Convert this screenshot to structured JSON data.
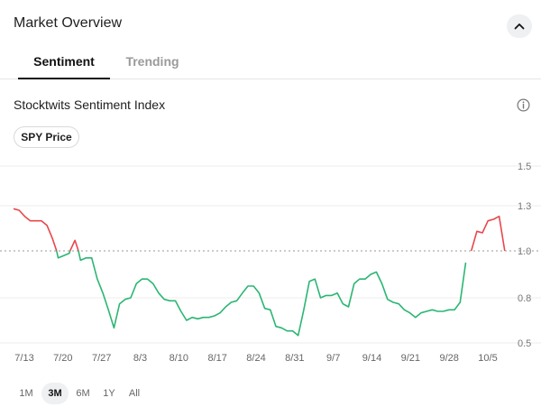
{
  "header": {
    "title": "Market Overview",
    "collapse_icon": "chevron-up-icon"
  },
  "tabs": [
    {
      "label": "Sentiment",
      "active": true
    },
    {
      "label": "Trending",
      "active": false
    }
  ],
  "index_title": "Stocktwits Sentiment Index",
  "info_icon": "info-icon",
  "chip_label": "SPY Price",
  "range_buttons": [
    {
      "label": "1M",
      "active": false
    },
    {
      "label": "3M",
      "active": true
    },
    {
      "label": "6M",
      "active": false
    },
    {
      "label": "1Y",
      "active": false
    },
    {
      "label": "All",
      "active": false
    }
  ],
  "colors": {
    "positive": "#2bb673",
    "negative": "#e8474c",
    "baseline": "#999999",
    "grid": "#eeeeee"
  },
  "chart_data": {
    "type": "line",
    "xlabel": "",
    "ylabel": "",
    "x_tick_labels": [
      "7/13",
      "7/20",
      "7/27",
      "8/3",
      "8/10",
      "8/17",
      "8/24",
      "8/31",
      "9/7",
      "9/14",
      "9/21",
      "9/28",
      "10/5"
    ],
    "y_ticks": [
      "1.5",
      "1.3",
      "1.0",
      "0.8",
      "0.5"
    ],
    "baseline": 1.0,
    "grid": true,
    "series": [
      {
        "values": [
          1.28,
          1.27,
          1.23,
          1.2,
          1.2,
          1.2,
          1.17,
          1.08,
          0.97,
          0.98,
          0.99,
          1.07,
          0.96,
          0.97,
          0.97,
          0.88,
          0.82,
          0.72,
          0.6,
          0.76,
          0.79,
          0.8,
          0.86,
          0.88,
          0.88,
          0.86,
          0.82,
          0.79,
          0.78,
          0.78,
          0.71,
          0.65,
          0.67,
          0.66,
          0.67,
          0.67,
          0.68,
          0.7,
          0.74,
          0.77,
          0.78,
          0.82,
          0.85,
          0.85,
          0.82,
          0.73,
          0.72,
          0.61,
          0.6,
          0.58,
          0.58,
          0.55,
          0.72,
          0.87,
          0.88,
          0.8,
          0.81,
          0.81,
          0.82,
          0.76,
          0.74,
          0.86,
          0.88,
          0.88,
          0.9,
          0.91,
          0.86,
          0.79,
          0.77,
          0.76,
          0.72,
          0.7,
          0.67,
          0.7,
          0.71,
          0.72,
          0.71,
          0.71,
          0.72,
          0.72,
          0.77,
          0.95,
          1.0,
          1.13,
          1.12,
          1.2,
          1.21,
          1.23,
          1.0,
          0.92
        ]
      }
    ]
  }
}
